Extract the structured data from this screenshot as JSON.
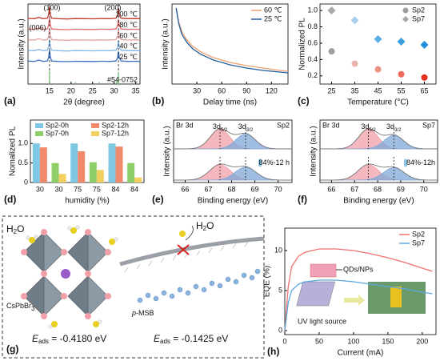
{
  "chart_data": [
    {
      "type": "line",
      "panel": "(a)",
      "xlabel": "2θ (degree)",
      "ylabel": "Intensity (a.u.)",
      "legend": "right-end",
      "xlim": [
        10,
        36
      ],
      "xticks": [
        15,
        20,
        25,
        30,
        35
      ],
      "ylim": [
        0,
        6
      ],
      "x": [
        10,
        11.5,
        12.5,
        13.5,
        14.5,
        14.8,
        15,
        15.2,
        15.5,
        17,
        19,
        21,
        23,
        25,
        27,
        29,
        30.4,
        30.8,
        31,
        31.2,
        31.6,
        33,
        35,
        36
      ],
      "series": [
        {
          "name": "100 ℃",
          "color": "#c0392b",
          "values": [
            4.92,
            4.9,
            5.0,
            4.9,
            4.93,
            5.2,
            5.8,
            5.2,
            4.93,
            4.9,
            4.88,
            4.91,
            4.9,
            4.89,
            4.91,
            4.9,
            4.93,
            5.15,
            5.7,
            5.15,
            4.94,
            4.9,
            4.91,
            4.9
          ]
        },
        {
          "name": "80 ℃",
          "color": "#e06a6a",
          "values": [
            4.12,
            4.1,
            4.2,
            4.1,
            4.13,
            4.4,
            4.95,
            4.4,
            4.13,
            4.1,
            4.08,
            4.11,
            4.1,
            4.09,
            4.11,
            4.1,
            4.13,
            4.35,
            4.85,
            4.35,
            4.14,
            4.1,
            4.11,
            4.1
          ]
        },
        {
          "name": "60 ℃",
          "color": "#e8a0a0",
          "values": [
            3.32,
            3.3,
            3.4,
            3.3,
            3.33,
            3.6,
            4.15,
            3.6,
            3.33,
            3.3,
            3.28,
            3.31,
            3.3,
            3.29,
            3.31,
            3.3,
            3.33,
            3.55,
            4.05,
            3.55,
            3.34,
            3.3,
            3.31,
            3.3
          ]
        },
        {
          "name": "40 ℃",
          "color": "#86b8e4",
          "values": [
            2.52,
            2.5,
            2.6,
            2.5,
            2.53,
            2.8,
            3.35,
            2.8,
            2.53,
            2.5,
            2.48,
            2.51,
            2.5,
            2.49,
            2.51,
            2.5,
            2.53,
            2.75,
            3.25,
            2.75,
            2.54,
            2.5,
            2.51,
            2.5
          ]
        },
        {
          "name": "25 ℃",
          "color": "#3a6fc4",
          "values": [
            1.72,
            1.7,
            1.8,
            1.7,
            1.73,
            2.0,
            2.55,
            2.0,
            1.73,
            1.7,
            1.68,
            1.71,
            1.7,
            1.69,
            1.71,
            1.7,
            1.73,
            1.95,
            2.45,
            1.95,
            1.74,
            1.7,
            1.71,
            1.7
          ]
        }
      ],
      "vlines": [
        15,
        31
      ],
      "peak_labels": [
        "(006)",
        "(100)",
        "(200)"
      ],
      "reference": {
        "name": "#54-0752",
        "color": "#4caf50",
        "x": [
          15,
          21,
          26.5,
          30.6,
          31
        ],
        "values": [
          1.0,
          0.15,
          0.15,
          0.25,
          0.9
        ]
      }
    },
    {
      "type": "line",
      "panel": "(b)",
      "xlabel": "Delay time (ns)",
      "ylabel": "Intensity (a.u.)",
      "legend": "upper right",
      "xlim": [
        0,
        140
      ],
      "xticks": [
        30,
        60,
        90,
        120
      ],
      "ylim": [
        0,
        1
      ],
      "x": [
        5,
        8,
        12,
        18,
        25,
        35,
        50,
        70,
        90,
        110,
        130,
        140
      ],
      "series": [
        {
          "name": "60 ℃",
          "color": "#f0a070",
          "values": [
            0.95,
            0.78,
            0.65,
            0.55,
            0.47,
            0.4,
            0.33,
            0.27,
            0.23,
            0.2,
            0.17,
            0.16
          ]
        },
        {
          "name": "25 ℃",
          "color": "#1f5fa0",
          "values": [
            0.95,
            0.76,
            0.62,
            0.52,
            0.44,
            0.37,
            0.3,
            0.24,
            0.2,
            0.17,
            0.15,
            0.14
          ]
        }
      ]
    },
    {
      "type": "scatter",
      "panel": "(c)",
      "xlabel": "Temperature (°C)",
      "ylabel": "Normalized PL",
      "legend": "upper right",
      "xlim": [
        20,
        70
      ],
      "xticks": [
        25,
        35,
        45,
        55,
        65
      ],
      "ylim": [
        0.1,
        1.08
      ],
      "yticks": [
        0.2,
        0.4,
        0.6,
        0.8,
        {
          "value": 1,
          "label": "1.0"
        }
      ],
      "x": [
        25,
        35,
        45,
        55,
        65
      ],
      "series": [
        {
          "name": "Sp2",
          "color": "#9e9e9e",
          "marker": "circle",
          "values": [
            0.5,
            0.35,
            0.28,
            0.22,
            0.18
          ],
          "point_colors": [
            "#9e9e9e",
            "#e8b4ac",
            "#ec9080",
            "#ee6a58",
            "#e8301e"
          ]
        },
        {
          "name": "Sp7",
          "color": "#a8a8a8",
          "marker": "diamond",
          "values": [
            1.0,
            0.88,
            0.65,
            0.62,
            0.58
          ],
          "point_colors": [
            "#a8a8a8",
            "#a8d0ec",
            "#5ab0e6",
            "#3ca0e0",
            "#1e90dc"
          ]
        }
      ]
    },
    {
      "type": "bar",
      "panel": "(d)",
      "xlabel": "humidity (%)",
      "ylabel": "Nomalized PL",
      "legend": "top",
      "categories": [
        "30",
        "30",
        "75",
        "75",
        "84",
        "84"
      ],
      "ylim": [
        0,
        1.6
      ],
      "yticks": [
        0,
        0.5,
        {
          "value": 1,
          "label": "1.0"
        }
      ],
      "series": [
        {
          "name": "Sp2-0h",
          "color": "#7ec8e3",
          "values": [
            1.0,
            null,
            1.0,
            null,
            1.0,
            null
          ]
        },
        {
          "name": "Sp2-12h",
          "color": "#f08a6a",
          "values": [
            0.9,
            null,
            0.8,
            null,
            0.92,
            null
          ]
        },
        {
          "name": "Sp7-0h",
          "color": "#8fcf6a",
          "values": [
            null,
            0.5,
            null,
            0.52,
            null,
            0.5
          ]
        },
        {
          "name": "Sp7-12h",
          "color": "#f2d060",
          "values": [
            null,
            0.22,
            null,
            0.32,
            null,
            0.13
          ]
        }
      ]
    },
    {
      "type": "peakfit",
      "panel": "(e)",
      "xlabel": "Binding energy (eV)",
      "ylabel": "Intensity (a.u.)",
      "xlim": [
        65.5,
        70.6
      ],
      "xticks": [
        66,
        67,
        68,
        69,
        70
      ],
      "ylim": [
        0,
        1
      ],
      "corner_left": "Br 3d",
      "corner_right": "Sp2",
      "peak_names": [
        {
          "text": "3d",
          "sub": "5/2"
        },
        {
          "text": "3d",
          "sub": "3/2"
        }
      ],
      "peak_colors": [
        "#f0a0a8",
        "#80a8d8"
      ],
      "spectra": [
        {
          "peaks": [
            {
              "center": 67.5,
              "height": 0.8,
              "width": 0.42
            },
            {
              "center": 68.6,
              "height": 0.6,
              "width": 0.42
            }
          ]
        },
        {
          "label": "84%-12 h",
          "peaks": [
            {
              "center": 67.5,
              "height": 0.62,
              "width": 0.45
            },
            {
              "center": 68.6,
              "height": 0.52,
              "width": 0.45
            }
          ]
        }
      ]
    },
    {
      "type": "peakfit",
      "panel": "(f)",
      "xlabel": "Binding energy (eV)",
      "ylabel": "Intensity (a.u.)",
      "xlim": [
        65.5,
        70.6
      ],
      "xticks": [
        66,
        67,
        68,
        69,
        70
      ],
      "ylim": [
        0,
        1
      ],
      "corner_left": "Br 3d",
      "corner_right": "Sp7",
      "peak_names": [
        {
          "text": "3d",
          "sub": "5/2"
        },
        {
          "text": "3d",
          "sub": "3/2"
        }
      ],
      "peak_colors": [
        "#f0a0a8",
        "#80a8d8"
      ],
      "spectra": [
        {
          "peaks": [
            {
              "center": 67.6,
              "height": 0.8,
              "width": 0.42
            },
            {
              "center": 68.7,
              "height": 0.55,
              "width": 0.42
            }
          ]
        },
        {
          "label": "84%-12h",
          "peaks": [
            {
              "center": 67.6,
              "height": 0.62,
              "width": 0.45
            },
            {
              "center": 68.7,
              "height": 0.5,
              "width": 0.45
            }
          ]
        }
      ]
    },
    {
      "type": "line",
      "panel": "(h)",
      "xlabel": "Current (mA)",
      "ylabel": "EQE (%)",
      "legend": "upper right",
      "xlim": [
        0,
        220
      ],
      "xticks": [
        0,
        50,
        100,
        150,
        200
      ],
      "ylim": [
        -0.5,
        12.8
      ],
      "yticks": [
        0,
        5,
        10
      ],
      "x": [
        0,
        5,
        10,
        20,
        30,
        50,
        75,
        100,
        125,
        150,
        175,
        200,
        215
      ],
      "series": [
        {
          "name": "Sp2",
          "color": "#f07070",
          "values": [
            0,
            5.5,
            8,
            9.3,
            9.8,
            10.2,
            10.2,
            10,
            9.6,
            9.1,
            8.5,
            7.8,
            7.4
          ]
        },
        {
          "name": "Sp7",
          "color": "#5aa8e0",
          "values": [
            0,
            3.5,
            5,
            5.8,
            6.1,
            6.3,
            6.3,
            6.1,
            5.8,
            5.5,
            5.2,
            4.8,
            4.6
          ]
        }
      ],
      "annotations": [
        "QDs/NPs",
        "UV light source"
      ]
    }
  ],
  "diagram": {
    "panel": "(g)",
    "water_left": {
      "text": "H",
      "sub": "2",
      "tail": "O"
    },
    "water_right": {
      "text": "H",
      "sub": "2",
      "tail": "O"
    },
    "left_material": {
      "text": "CsPbBr",
      "sub": "3"
    },
    "right_material": {
      "italic": "p",
      "text": "-MSB"
    },
    "left_energy": {
      "symbol": "E",
      "sub": "ads",
      "text": " = -0.4180 eV"
    },
    "right_energy": {
      "symbol": "E",
      "sub": "ads",
      "text": " = -0.1425 eV"
    }
  }
}
